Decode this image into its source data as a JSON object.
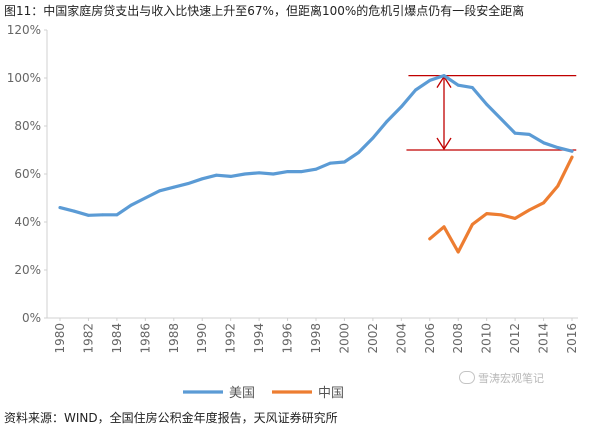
{
  "figure": {
    "title": "图11：中国家庭房贷支出与收入比快速上升至67%，但距离100%的危机引爆点仍有一段安全距离",
    "source": "资料来源：WIND，全国住房公积金年度报告，天风证券研究所",
    "watermark": "雪涛宏观笔记"
  },
  "chart_data": {
    "type": "line",
    "x_ticks": [
      "1980",
      "1982",
      "1984",
      "1986",
      "1988",
      "1990",
      "1992",
      "1994",
      "1996",
      "1998",
      "2000",
      "2002",
      "2004",
      "2006",
      "2008",
      "2010",
      "2012",
      "2014",
      "2016"
    ],
    "y_ticks": [
      "0%",
      "20%",
      "40%",
      "60%",
      "80%",
      "100%",
      "120%"
    ],
    "xlim": [
      1980,
      2016
    ],
    "ylim": [
      0,
      120
    ],
    "grid": false,
    "legend_position": "bottom",
    "series": [
      {
        "name": "美国",
        "color": "#5b9bd5",
        "x": [
          1980,
          1981,
          1982,
          1983,
          1984,
          1985,
          1986,
          1987,
          1988,
          1989,
          1990,
          1991,
          1992,
          1993,
          1994,
          1995,
          1996,
          1997,
          1998,
          1999,
          2000,
          2001,
          2002,
          2003,
          2004,
          2005,
          2006,
          2007,
          2008,
          2009,
          2010,
          2011,
          2012,
          2013,
          2014,
          2015,
          2016
        ],
        "values": [
          46,
          44.5,
          42.8,
          43,
          43,
          47,
          50,
          53,
          54.5,
          56,
          58,
          59.5,
          59,
          60,
          60.5,
          60,
          61,
          61,
          62,
          64.5,
          65,
          69,
          75,
          82,
          88,
          95,
          99,
          101,
          97,
          96,
          89,
          83,
          77,
          76.5,
          73,
          71,
          69.5
        ]
      },
      {
        "name": "中国",
        "color": "#ed7d31",
        "x": [
          2006,
          2007,
          2008,
          2009,
          2010,
          2011,
          2012,
          2013,
          2014,
          2015,
          2016
        ],
        "values": [
          33,
          38,
          27.5,
          39,
          43.5,
          43,
          41.5,
          45,
          48,
          55,
          67
        ]
      }
    ],
    "annotation": {
      "type": "gap-arrow",
      "color": "#c00000",
      "x": 2007,
      "x_range": [
        2004.5,
        2016.3
      ],
      "upper": 101,
      "lower": 70
    }
  }
}
